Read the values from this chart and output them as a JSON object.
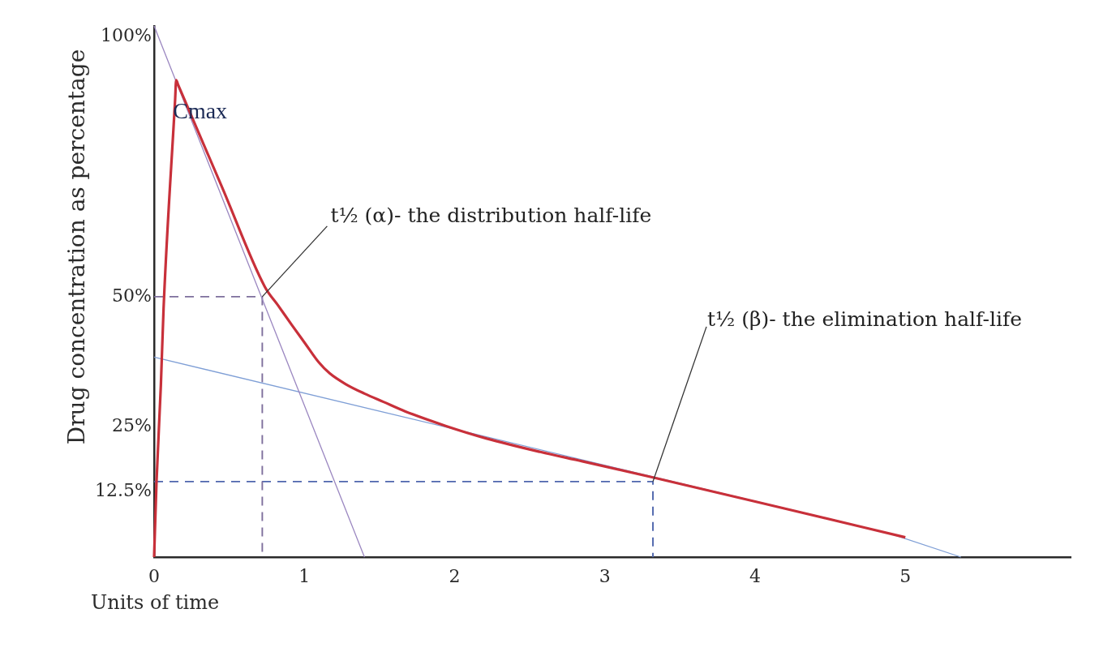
{
  "chart_data": {
    "type": "line",
    "xlabel": "Units of time",
    "ylabel": "Drug concentration as percentage",
    "xlim": [
      0,
      6.1
    ],
    "xticks": [
      0,
      1,
      2,
      3,
      4,
      5
    ],
    "ylim": [
      0,
      102
    ],
    "yticks": [
      {
        "value": 12.5,
        "label": "12.5%"
      },
      {
        "value": 25,
        "label": "25%"
      },
      {
        "value": 50,
        "label": "50%"
      },
      {
        "value": 100,
        "label": "100%"
      }
    ],
    "marker": "none",
    "series": [
      {
        "color": "#c8303a",
        "x": [
          0,
          0.016,
          0.045,
          0.063,
          0.14,
          0.147,
          0.16,
          0.45,
          0.737,
          0.826,
          0.916,
          1.006,
          1.096,
          1.168,
          1.276,
          1.4,
          1.527,
          1.67,
          1.94,
          2.21,
          2.57,
          2.85,
          3.32,
          4.2,
          5.0
        ],
        "values": [
          0,
          14.4,
          33,
          47.7,
          87.9,
          91.6,
          90.7,
          71.2,
          51.9,
          48.3,
          44.6,
          41.0,
          37.4,
          35.3,
          33.2,
          31.4,
          29.8,
          28.0,
          25.2,
          22.8,
          20.2,
          18.4,
          15.3,
          9.3,
          3.8
        ]
      },
      {
        "color": "#9a86c0",
        "x": [
          0,
          1.4
        ],
        "values": [
          102,
          0
        ]
      },
      {
        "color": "#7f9fd6",
        "x": [
          0,
          4.9,
          5.37
        ],
        "values": [
          38.4,
          4.5,
          0
        ]
      },
      {
        "color": "#7e6f9c",
        "line_style": "dashed",
        "x": [
          0,
          0.72,
          0.72
        ],
        "values": [
          50,
          50,
          0
        ]
      },
      {
        "color": "#4f66ad",
        "line_style": "dashed",
        "x": [
          0,
          3.32,
          3.32
        ],
        "values": [
          14.5,
          14.5,
          0
        ]
      }
    ],
    "annotations": [
      {
        "text": "Cmax",
        "x": 0.147,
        "y": 91.6
      },
      {
        "text": "t½ (α)- the distribution half-life",
        "x": 0.72,
        "y": 50
      },
      {
        "text": "t½ (β)- the elimination half-life",
        "x": 3.32,
        "y": 14.5
      }
    ]
  }
}
